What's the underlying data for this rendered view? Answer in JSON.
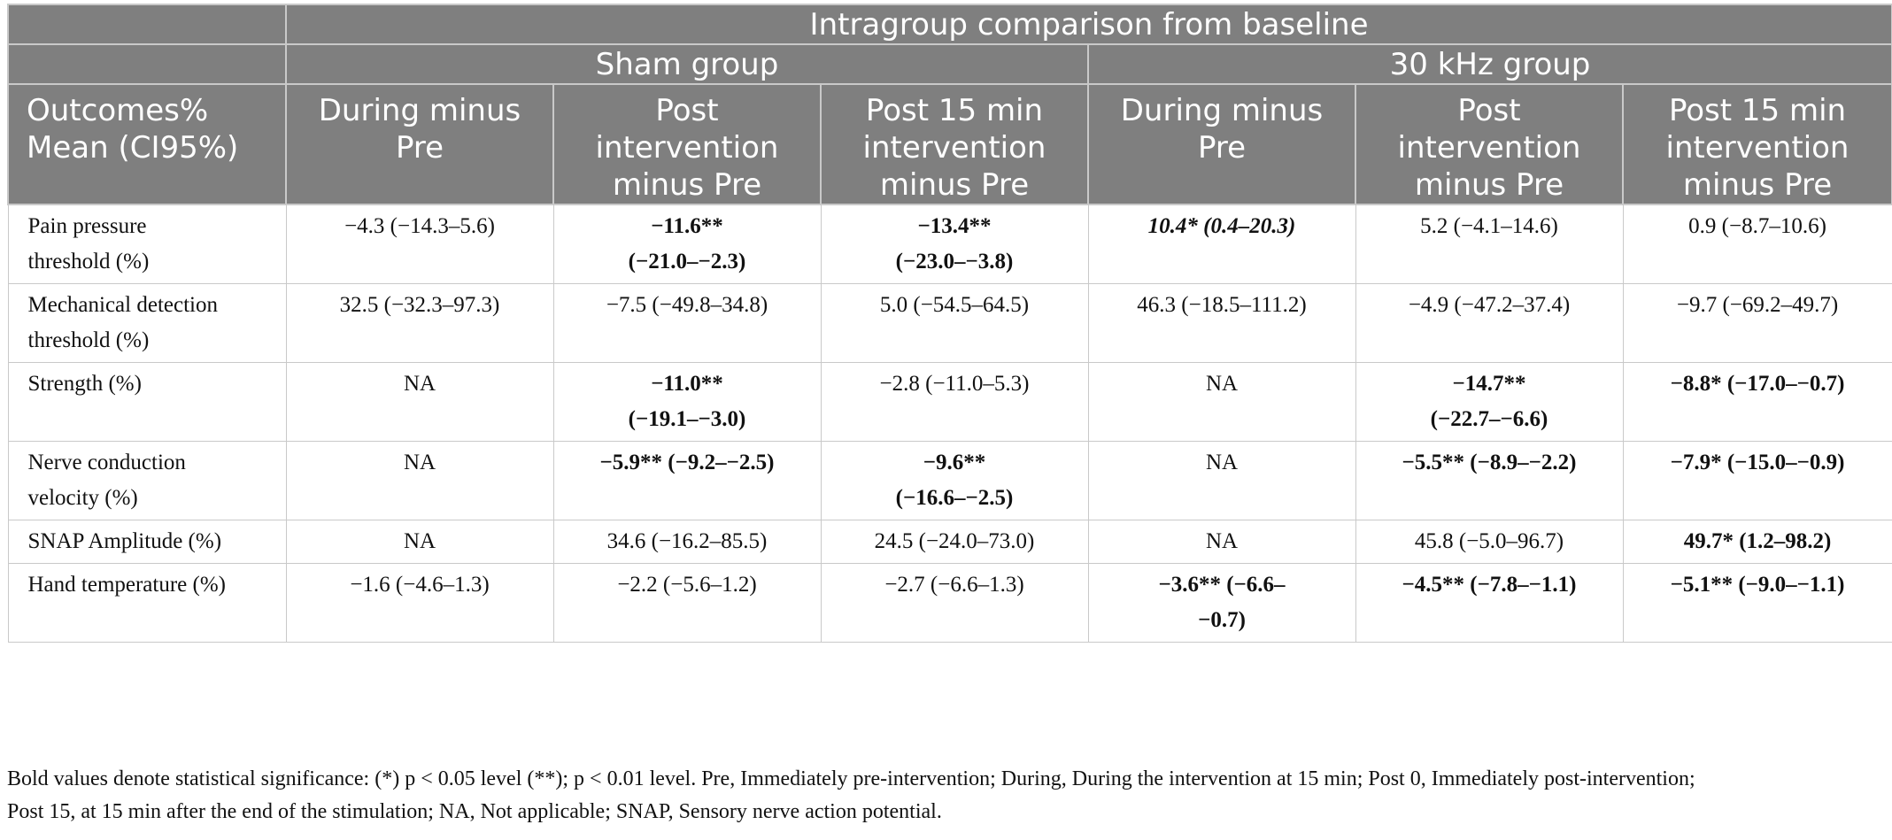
{
  "header": {
    "top": "Intragroup comparison from baseline",
    "groups": [
      "Sham group",
      "30 kHz group"
    ],
    "outcome_label_1": "Outcomes%",
    "outcome_label_2": "Mean (CI95%)",
    "sham_cols": [
      [
        "During minus",
        "Pre",
        ""
      ],
      [
        "Post",
        "intervention",
        "minus Pre"
      ],
      [
        "Post 15 min",
        "intervention",
        "minus Pre"
      ]
    ],
    "khz_cols": [
      [
        "During minus",
        "Pre",
        ""
      ],
      [
        "Post",
        "intervention",
        "minus Pre"
      ],
      [
        "Post 15 min",
        "intervention",
        "minus Pre"
      ]
    ]
  },
  "rows": [
    {
      "label": [
        "Pain pressure",
        "threshold (%)"
      ],
      "cells": [
        {
          "lines": [
            "−4.3 (−14.3–5.6)"
          ],
          "bold": false,
          "italic": false
        },
        {
          "lines": [
            "−11.6**",
            "(−21.0–−2.3)"
          ],
          "bold": true,
          "italic": false
        },
        {
          "lines": [
            "−13.4**",
            "(−23.0–−3.8)"
          ],
          "bold": true,
          "italic": false
        },
        {
          "lines": [
            "10.4* (0.4–20.3)"
          ],
          "bold": true,
          "italic": true
        },
        {
          "lines": [
            "5.2 (−4.1–14.6)"
          ],
          "bold": false,
          "italic": false
        },
        {
          "lines": [
            "0.9 (−8.7–10.6)"
          ],
          "bold": false,
          "italic": false
        }
      ]
    },
    {
      "label": [
        "Mechanical detection",
        "threshold (%)"
      ],
      "cells": [
        {
          "lines": [
            "32.5 (−32.3–97.3)"
          ],
          "bold": false,
          "italic": false
        },
        {
          "lines": [
            "−7.5 (−49.8–34.8)"
          ],
          "bold": false,
          "italic": false
        },
        {
          "lines": [
            "5.0 (−54.5–64.5)"
          ],
          "bold": false,
          "italic": false
        },
        {
          "lines": [
            "46.3 (−18.5–111.2)"
          ],
          "bold": false,
          "italic": false
        },
        {
          "lines": [
            "−4.9 (−47.2–37.4)"
          ],
          "bold": false,
          "italic": false
        },
        {
          "lines": [
            "−9.7 (−69.2–49.7)"
          ],
          "bold": false,
          "italic": false
        }
      ]
    },
    {
      "label": [
        "Strength (%)"
      ],
      "cells": [
        {
          "lines": [
            "NA"
          ],
          "bold": false,
          "italic": false
        },
        {
          "lines": [
            "−11.0**",
            "(−19.1–−3.0)"
          ],
          "bold": true,
          "italic": false
        },
        {
          "lines": [
            "−2.8 (−11.0–5.3)"
          ],
          "bold": false,
          "italic": false
        },
        {
          "lines": [
            "NA"
          ],
          "bold": false,
          "italic": false
        },
        {
          "lines": [
            "−14.7**",
            "(−22.7–−6.6)"
          ],
          "bold": true,
          "italic": false
        },
        {
          "lines": [
            "−8.8* (−17.0–−0.7)"
          ],
          "bold": true,
          "italic": false
        }
      ]
    },
    {
      "label": [
        "Nerve conduction",
        "velocity (%)"
      ],
      "cells": [
        {
          "lines": [
            "NA"
          ],
          "bold": false,
          "italic": false
        },
        {
          "lines": [
            "−5.9** (−9.2–−2.5)"
          ],
          "bold": true,
          "italic": false
        },
        {
          "lines": [
            "−9.6**",
            "(−16.6–−2.5)"
          ],
          "bold": true,
          "italic": false
        },
        {
          "lines": [
            "NA"
          ],
          "bold": false,
          "italic": false
        },
        {
          "lines": [
            "−5.5** (−8.9–−2.2)"
          ],
          "bold": true,
          "italic": false
        },
        {
          "lines": [
            "−7.9* (−15.0–−0.9)"
          ],
          "bold": true,
          "italic": false
        }
      ]
    },
    {
      "label": [
        "SNAP Amplitude (%)"
      ],
      "cells": [
        {
          "lines": [
            "NA"
          ],
          "bold": false,
          "italic": false
        },
        {
          "lines": [
            "34.6 (−16.2–85.5)"
          ],
          "bold": false,
          "italic": false
        },
        {
          "lines": [
            "24.5 (−24.0–73.0)"
          ],
          "bold": false,
          "italic": false
        },
        {
          "lines": [
            "NA"
          ],
          "bold": false,
          "italic": false
        },
        {
          "lines": [
            "45.8 (−5.0–96.7)"
          ],
          "bold": false,
          "italic": false
        },
        {
          "lines": [
            "49.7* (1.2–98.2)"
          ],
          "bold": true,
          "italic": false
        }
      ]
    },
    {
      "label": [
        "Hand temperature (%)"
      ],
      "cells": [
        {
          "lines": [
            "−1.6 (−4.6–1.3)"
          ],
          "bold": false,
          "italic": false
        },
        {
          "lines": [
            "−2.2 (−5.6–1.2)"
          ],
          "bold": false,
          "italic": false
        },
        {
          "lines": [
            "−2.7 (−6.6–1.3)"
          ],
          "bold": false,
          "italic": false
        },
        {
          "lines": [
            "−3.6** (−6.6–",
            "−0.7)"
          ],
          "bold": true,
          "italic": false
        },
        {
          "lines": [
            "−4.5** (−7.8–−1.1)"
          ],
          "bold": true,
          "italic": false
        },
        {
          "lines": [
            "−5.1** (−9.0–−1.1)"
          ],
          "bold": true,
          "italic": false
        }
      ]
    }
  ],
  "footnote": {
    "line1": "Bold values denote statistical significance: (*) p < 0.05 level (**); p < 0.01 level. Pre, Immediately pre-intervention; During, During the intervention at 15 min; Post 0, Immediately post-intervention;",
    "line2": "Post 15, at 15 min after the end of the stimulation; NA, Not applicable; SNAP, Sensory nerve action potential."
  }
}
